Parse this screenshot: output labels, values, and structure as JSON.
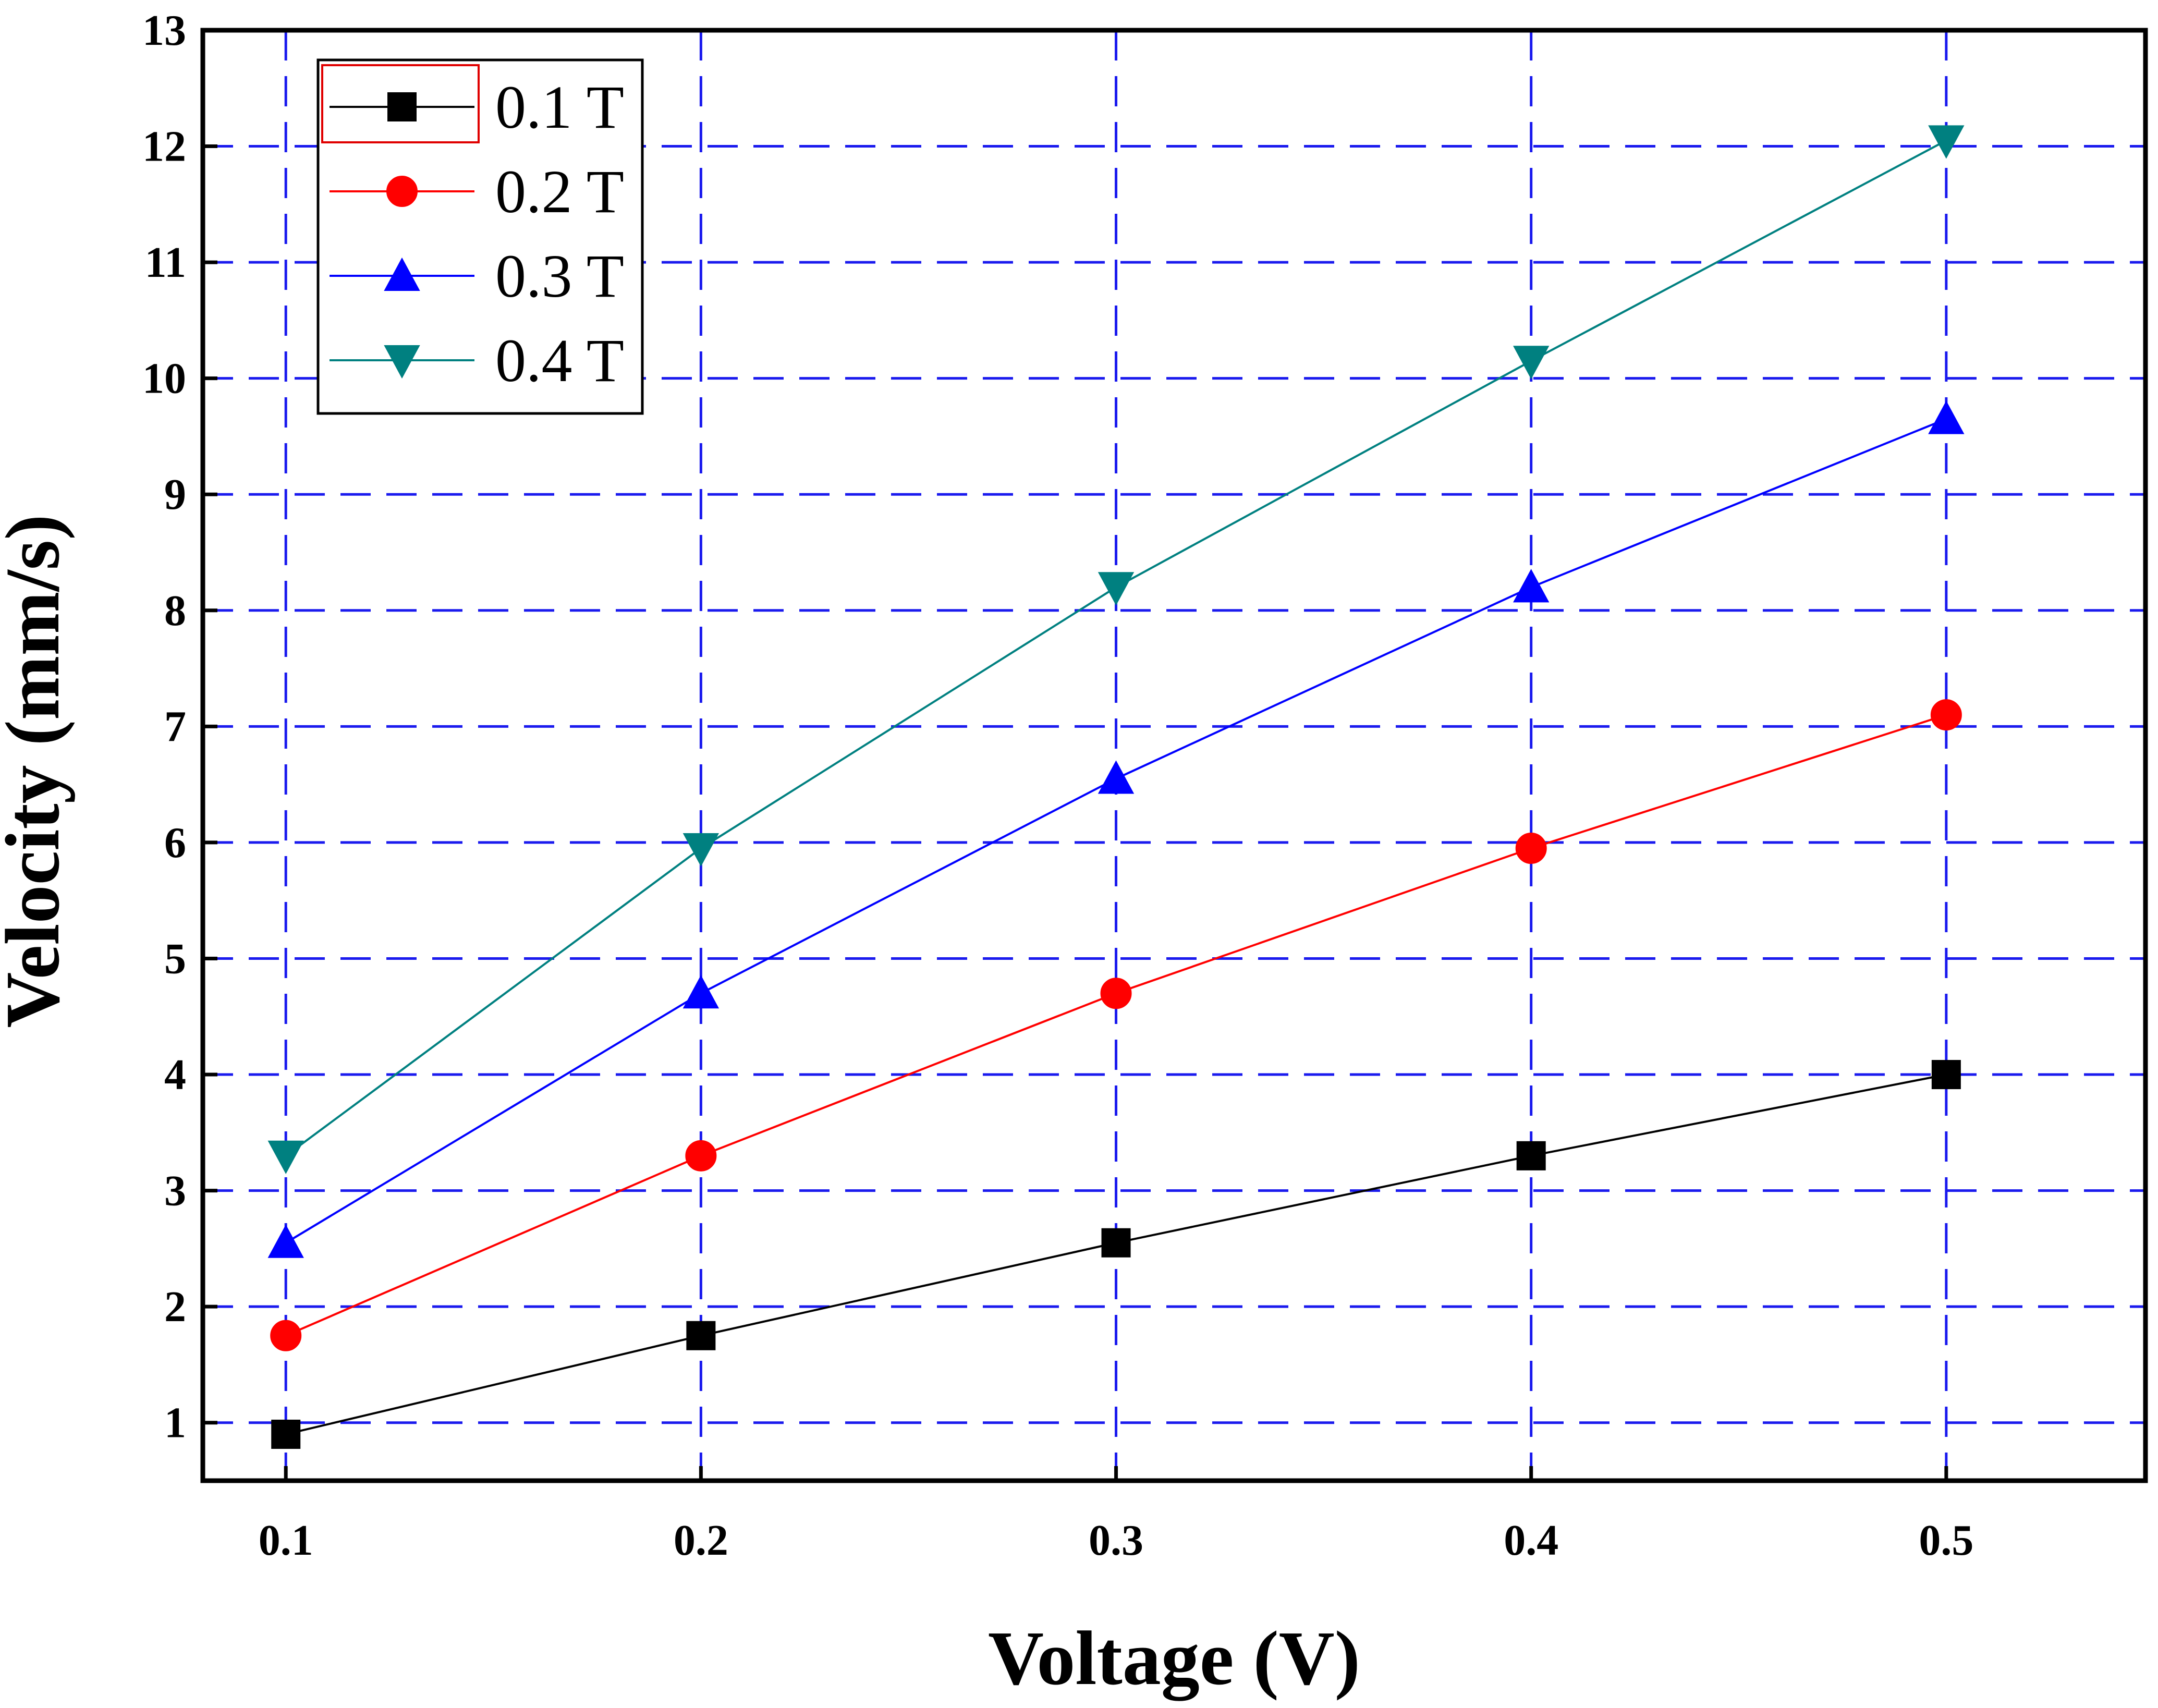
{
  "colors": {
    "grid": "#1a1aee",
    "axis": "#000000",
    "legend_highlight": "#e00000"
  },
  "chart_data": {
    "type": "line",
    "title": "",
    "xlabel": "Voltage (V)",
    "ylabel": "Velocity (mm/s)",
    "x": [
      0.1,
      0.2,
      0.3,
      0.4,
      0.5
    ],
    "xlim": [
      0.08,
      0.548
    ],
    "ylim": [
      0.5,
      13
    ],
    "x_ticks": [
      "0.1",
      "0.2",
      "0.3",
      "0.4",
      "0.5"
    ],
    "y_ticks": [
      "1",
      "2",
      "3",
      "4",
      "5",
      "6",
      "7",
      "8",
      "9",
      "10",
      "11",
      "12",
      "13"
    ],
    "grid": true,
    "legend_position": "top-left",
    "series": [
      {
        "name": "0.1 T",
        "color": "#000000",
        "marker": "square",
        "values": [
          0.9,
          1.75,
          2.55,
          3.3,
          4.0
        ]
      },
      {
        "name": "0.2 T",
        "color": "#ff0000",
        "marker": "circle",
        "values": [
          1.75,
          3.3,
          4.7,
          5.95,
          7.1
        ]
      },
      {
        "name": "0.3 T",
        "color": "#0000ff",
        "marker": "triangle-up",
        "values": [
          2.55,
          4.7,
          6.55,
          8.2,
          9.65
        ]
      },
      {
        "name": "0.4 T",
        "color": "#008080",
        "marker": "triangle-down",
        "values": [
          3.3,
          5.95,
          8.2,
          10.15,
          12.05
        ]
      }
    ]
  }
}
